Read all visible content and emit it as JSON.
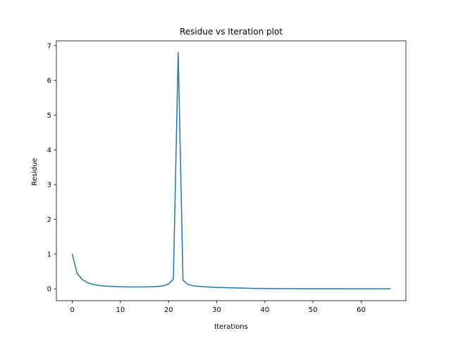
{
  "chart_data": {
    "type": "line",
    "title": "Residue vs Iteration plot",
    "xlabel": "Iterations",
    "ylabel": "Residue",
    "xlim": [
      -3.3,
      69.3
    ],
    "ylim": [
      -0.34,
      7.14
    ],
    "xticks": [
      0,
      10,
      20,
      30,
      40,
      50,
      60
    ],
    "yticks": [
      0,
      1,
      2,
      3,
      4,
      5,
      6,
      7
    ],
    "grid": false,
    "legend": "none",
    "series": [
      {
        "color": "#1f77b4",
        "x": [
          0,
          1,
          2,
          3,
          4,
          5,
          6,
          7,
          8,
          9,
          10,
          11,
          12,
          13,
          14,
          15,
          16,
          17,
          18,
          19,
          20,
          21,
          22,
          23,
          24,
          25,
          26,
          27,
          28,
          29,
          30,
          31,
          32,
          33,
          34,
          35,
          36,
          37,
          38,
          39,
          40,
          41,
          42,
          43,
          44,
          45,
          46,
          47,
          48,
          49,
          50,
          51,
          52,
          53,
          54,
          55,
          56,
          57,
          58,
          59,
          60,
          61,
          62,
          63,
          64,
          65,
          66
        ],
        "values": [
          1.0,
          0.45,
          0.28,
          0.19,
          0.14,
          0.11,
          0.09,
          0.08,
          0.07,
          0.065,
          0.06,
          0.058,
          0.056,
          0.055,
          0.055,
          0.056,
          0.058,
          0.062,
          0.07,
          0.09,
          0.14,
          0.28,
          6.8,
          0.25,
          0.13,
          0.09,
          0.075,
          0.065,
          0.055,
          0.048,
          0.042,
          0.038,
          0.034,
          0.031,
          0.028,
          0.025,
          0.02,
          0.016,
          0.013,
          0.012,
          0.011,
          0.01,
          0.009,
          0.008,
          0.007,
          0.006,
          0.006,
          0.005,
          0.005,
          0.005,
          0.005,
          0.004,
          0.004,
          0.004,
          0.004,
          0.004,
          0.004,
          0.003,
          0.003,
          0.003,
          0.003,
          0.003,
          0.003,
          0.003,
          0.003,
          0.003,
          0.003
        ]
      }
    ]
  }
}
